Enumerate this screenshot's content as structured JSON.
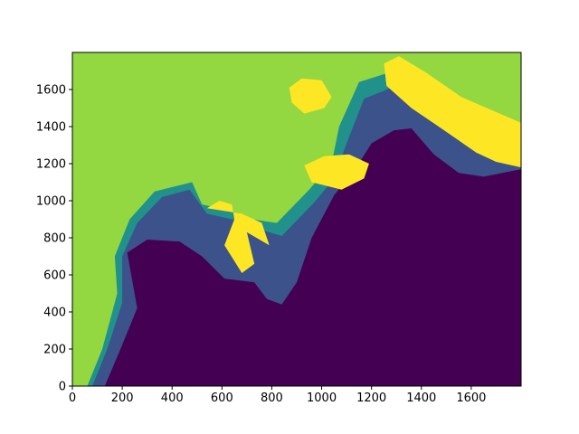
{
  "figure": {
    "background": "#ffffff"
  },
  "chart_data": {
    "type": "heatmap",
    "title": "",
    "xlabel": "",
    "ylabel": "",
    "xlim": [
      0,
      1800
    ],
    "ylim": [
      0,
      1800
    ],
    "xticks": [
      0,
      200,
      400,
      600,
      800,
      1000,
      1200,
      1400,
      1600
    ],
    "yticks": [
      0,
      200,
      400,
      600,
      800,
      1000,
      1200,
      1400,
      1600
    ],
    "grid": false,
    "legend": "none",
    "colormap": "viridis",
    "colors": {
      "level_0": "#440154",
      "level_1": "#3b528b",
      "level_2": "#21918c",
      "level_3": "#5ec962",
      "level_4": "#93d741",
      "level_5": "#fde725"
    },
    "regions": [
      {
        "name": "land",
        "level": 4,
        "polygon": [
          [
            0,
            1800
          ],
          [
            1800,
            1800
          ],
          [
            1800,
            0
          ],
          [
            0,
            0
          ]
        ]
      },
      {
        "name": "shelf-band-2",
        "level": 2,
        "polygon": [
          [
            60,
            0
          ],
          [
            120,
            200
          ],
          [
            180,
            500
          ],
          [
            170,
            700
          ],
          [
            230,
            900
          ],
          [
            330,
            1050
          ],
          [
            480,
            1100
          ],
          [
            520,
            980
          ],
          [
            620,
            950
          ],
          [
            720,
            900
          ],
          [
            820,
            880
          ],
          [
            950,
            1060
          ],
          [
            1040,
            1200
          ],
          [
            1070,
            1400
          ],
          [
            1150,
            1640
          ],
          [
            1290,
            1700
          ],
          [
            1480,
            1560
          ],
          [
            1800,
            1280
          ],
          [
            1800,
            0
          ]
        ]
      },
      {
        "name": "shelf-band-1",
        "level": 1,
        "polygon": [
          [
            80,
            0
          ],
          [
            140,
            200
          ],
          [
            200,
            450
          ],
          [
            200,
            700
          ],
          [
            260,
            880
          ],
          [
            360,
            1020
          ],
          [
            470,
            1060
          ],
          [
            540,
            930
          ],
          [
            640,
            900
          ],
          [
            740,
            850
          ],
          [
            840,
            810
          ],
          [
            970,
            990
          ],
          [
            1050,
            1120
          ],
          [
            1100,
            1310
          ],
          [
            1170,
            1550
          ],
          [
            1280,
            1610
          ],
          [
            1470,
            1490
          ],
          [
            1800,
            1240
          ],
          [
            1800,
            0
          ]
        ]
      },
      {
        "name": "deep-basin",
        "level": 0,
        "polygon": [
          [
            130,
            0
          ],
          [
            190,
            190
          ],
          [
            260,
            420
          ],
          [
            220,
            720
          ],
          [
            300,
            790
          ],
          [
            430,
            780
          ],
          [
            520,
            700
          ],
          [
            610,
            580
          ],
          [
            730,
            560
          ],
          [
            780,
            470
          ],
          [
            840,
            440
          ],
          [
            900,
            560
          ],
          [
            960,
            800
          ],
          [
            1050,
            1030
          ],
          [
            1130,
            1160
          ],
          [
            1200,
            1310
          ],
          [
            1290,
            1380
          ],
          [
            1360,
            1390
          ],
          [
            1450,
            1250
          ],
          [
            1550,
            1150
          ],
          [
            1650,
            1130
          ],
          [
            1800,
            1170
          ],
          [
            1800,
            0
          ]
        ]
      },
      {
        "name": "island-patch-upper",
        "level": 5,
        "polygon": [
          [
            870,
            1610
          ],
          [
            920,
            1660
          ],
          [
            1000,
            1650
          ],
          [
            1040,
            1560
          ],
          [
            1010,
            1500
          ],
          [
            930,
            1470
          ],
          [
            880,
            1530
          ]
        ]
      },
      {
        "name": "island-patch-middle",
        "level": 5,
        "polygon": [
          [
            930,
            1190
          ],
          [
            1010,
            1240
          ],
          [
            1110,
            1250
          ],
          [
            1190,
            1200
          ],
          [
            1170,
            1120
          ],
          [
            1080,
            1060
          ],
          [
            960,
            1100
          ]
        ]
      },
      {
        "name": "coastal-yellow-strip",
        "level": 5,
        "polygon": [
          [
            1250,
            1740
          ],
          [
            1310,
            1780
          ],
          [
            1420,
            1690
          ],
          [
            1560,
            1560
          ],
          [
            1800,
            1420
          ],
          [
            1800,
            1180
          ],
          [
            1700,
            1210
          ],
          [
            1620,
            1260
          ],
          [
            1480,
            1390
          ],
          [
            1360,
            1500
          ],
          [
            1260,
            1620
          ]
        ]
      },
      {
        "name": "inlet-yellow-patch",
        "level": 5,
        "polygon": [
          [
            540,
            960
          ],
          [
            590,
            1000
          ],
          [
            640,
            980
          ],
          [
            650,
            900
          ],
          [
            610,
            760
          ],
          [
            680,
            610
          ],
          [
            730,
            660
          ],
          [
            700,
            830
          ],
          [
            790,
            760
          ],
          [
            760,
            880
          ],
          [
            680,
            930
          ]
        ]
      }
    ]
  }
}
